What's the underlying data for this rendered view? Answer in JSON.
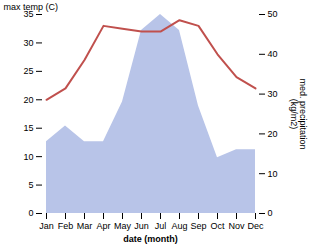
{
  "chart_data": {
    "type": "line",
    "categories": [
      "Jan",
      "Feb",
      "Mar",
      "Apr",
      "May",
      "Jun",
      "Jul",
      "Aug",
      "Sep",
      "Oct",
      "Nov",
      "Dec"
    ],
    "xlabel": "date (month)",
    "ylabel": "max temp (C)",
    "y2label": "med. precipitation\n(kg/m2)",
    "ylim": [
      0,
      35
    ],
    "yticks": [
      0,
      5,
      10,
      15,
      20,
      25,
      30,
      35
    ],
    "y2lim": [
      0,
      50
    ],
    "y2ticks": [
      0,
      10,
      20,
      30,
      40,
      50
    ],
    "grid": false,
    "series": [
      {
        "type": "area",
        "axis": "y2",
        "color": "#b8c4e8",
        "values": [
          18,
          22,
          18,
          18,
          28,
          46,
          50,
          46,
          27,
          14,
          16,
          16
        ]
      },
      {
        "type": "line",
        "color": "#c0504d",
        "values": [
          20,
          22,
          27,
          33,
          32.5,
          32,
          32,
          34,
          33,
          28,
          24,
          22
        ]
      }
    ]
  }
}
